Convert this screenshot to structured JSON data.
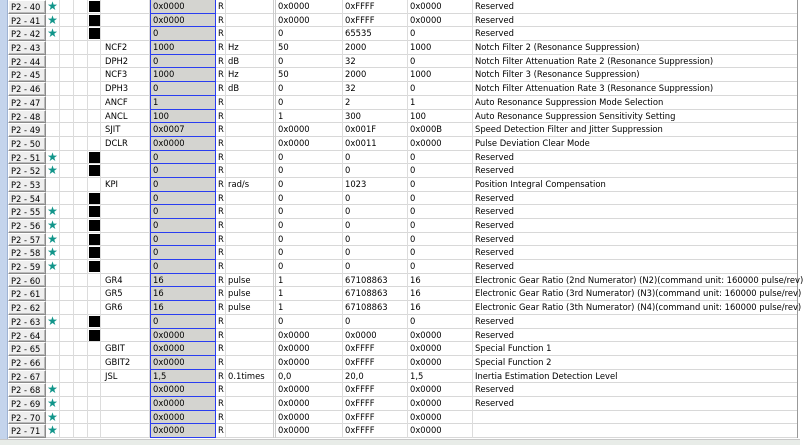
{
  "colors": {
    "star": "#11958a",
    "value_border": "#2a3df0",
    "value_bg": "#d4d4d0"
  },
  "rows": [
    {
      "id": "P2 - 40",
      "star": true,
      "block": true,
      "name": "",
      "value": "0x0000",
      "rw": "R",
      "unit": "",
      "min": "0x0000",
      "max": "0xFFFF",
      "default": "0x0000",
      "desc": "Reserved"
    },
    {
      "id": "P2 - 41",
      "star": true,
      "block": true,
      "name": "",
      "value": "0x0000",
      "rw": "R",
      "unit": "",
      "min": "0x0000",
      "max": "0xFFFF",
      "default": "0x0000",
      "desc": "Reserved"
    },
    {
      "id": "P2 - 42",
      "star": true,
      "block": true,
      "name": "",
      "value": "0",
      "rw": "R",
      "unit": "",
      "min": "0",
      "max": "65535",
      "default": "0",
      "desc": "Reserved"
    },
    {
      "id": "P2 - 43",
      "star": false,
      "block": false,
      "name": "NCF2",
      "value": "1000",
      "rw": "R",
      "unit": "Hz",
      "min": "50",
      "max": "2000",
      "default": "1000",
      "desc": "Notch Filter 2 (Resonance Suppression)"
    },
    {
      "id": "P2 - 44",
      "star": false,
      "block": false,
      "name": "DPH2",
      "value": "0",
      "rw": "R",
      "unit": "dB",
      "min": "0",
      "max": "32",
      "default": "0",
      "desc": "Notch Filter Attenuation Rate 2 (Resonance Suppression)"
    },
    {
      "id": "P2 - 45",
      "star": false,
      "block": false,
      "name": "NCF3",
      "value": "1000",
      "rw": "R",
      "unit": "Hz",
      "min": "50",
      "max": "2000",
      "default": "1000",
      "desc": "Notch Filter 3 (Resonance Suppression)"
    },
    {
      "id": "P2 - 46",
      "star": false,
      "block": false,
      "name": "DPH3",
      "value": "0",
      "rw": "R",
      "unit": "dB",
      "min": "0",
      "max": "32",
      "default": "0",
      "desc": "Notch Filter Attenuation Rate 3 (Resonance Suppression)"
    },
    {
      "id": "P2 - 47",
      "star": false,
      "block": false,
      "name": "ANCF",
      "value": "1",
      "rw": "R",
      "unit": "",
      "min": "0",
      "max": "2",
      "default": "1",
      "desc": "Auto Resonance Suppression Mode Selection"
    },
    {
      "id": "P2 - 48",
      "star": false,
      "block": false,
      "name": "ANCL",
      "value": "100",
      "rw": "R",
      "unit": "",
      "min": "1",
      "max": "300",
      "default": "100",
      "desc": "Auto Resonance Suppression Sensitivity Setting"
    },
    {
      "id": "P2 - 49",
      "star": false,
      "block": false,
      "name": "SJIT",
      "value": "0x0007",
      "rw": "R",
      "unit": "",
      "min": "0x0000",
      "max": "0x001F",
      "default": "0x000B",
      "desc": "Speed Detection Filter and Jitter Suppression"
    },
    {
      "id": "P2 - 50",
      "star": false,
      "block": false,
      "name": "DCLR",
      "value": "0x0000",
      "rw": "R",
      "unit": "",
      "min": "0x0000",
      "max": "0x0011",
      "default": "0x0000",
      "desc": "Pulse Deviation Clear Mode"
    },
    {
      "id": "P2 - 51",
      "star": true,
      "block": true,
      "name": "",
      "value": "0",
      "rw": "R",
      "unit": "",
      "min": "0",
      "max": "0",
      "default": "0",
      "desc": "Reserved"
    },
    {
      "id": "P2 - 52",
      "star": true,
      "block": true,
      "name": "",
      "value": "0",
      "rw": "R",
      "unit": "",
      "min": "0",
      "max": "0",
      "default": "0",
      "desc": "Reserved"
    },
    {
      "id": "P2 - 53",
      "star": false,
      "block": false,
      "name": "KPI",
      "value": "0",
      "rw": "R",
      "unit": "rad/s",
      "min": "0",
      "max": "1023",
      "default": "0",
      "desc": "Position Integral Compensation"
    },
    {
      "id": "P2 - 54",
      "star": false,
      "block": true,
      "name": "",
      "value": "0",
      "rw": "R",
      "unit": "",
      "min": "0",
      "max": "0",
      "default": "0",
      "desc": "Reserved"
    },
    {
      "id": "P2 - 55",
      "star": true,
      "block": true,
      "name": "",
      "value": "0",
      "rw": "R",
      "unit": "",
      "min": "0",
      "max": "0",
      "default": "0",
      "desc": "Reserved"
    },
    {
      "id": "P2 - 56",
      "star": true,
      "block": true,
      "name": "",
      "value": "0",
      "rw": "R",
      "unit": "",
      "min": "0",
      "max": "0",
      "default": "0",
      "desc": "Reserved"
    },
    {
      "id": "P2 - 57",
      "star": true,
      "block": true,
      "name": "",
      "value": "0",
      "rw": "R",
      "unit": "",
      "min": "0",
      "max": "0",
      "default": "0",
      "desc": "Reserved"
    },
    {
      "id": "P2 - 58",
      "star": true,
      "block": true,
      "name": "",
      "value": "0",
      "rw": "R",
      "unit": "",
      "min": "0",
      "max": "0",
      "default": "0",
      "desc": "Reserved"
    },
    {
      "id": "P2 - 59",
      "star": true,
      "block": true,
      "name": "",
      "value": "0",
      "rw": "R",
      "unit": "",
      "min": "0",
      "max": "0",
      "default": "0",
      "desc": "Reserved"
    },
    {
      "id": "P2 - 60",
      "star": false,
      "block": false,
      "name": "GR4",
      "value": "16",
      "rw": "R",
      "unit": "pulse",
      "min": "1",
      "max": "67108863",
      "default": "16",
      "desc": "Electronic Gear Ratio (2nd Numerator) (N2)(command unit: 160000 pulse/rev)"
    },
    {
      "id": "P2 - 61",
      "star": false,
      "block": false,
      "name": "GR5",
      "value": "16",
      "rw": "R",
      "unit": "pulse",
      "min": "1",
      "max": "67108863",
      "default": "16",
      "desc": "Electronic Gear Ratio (3rd Numerator) (N3)(command unit: 160000 pulse/rev)"
    },
    {
      "id": "P2 - 62",
      "star": false,
      "block": false,
      "name": "GR6",
      "value": "16",
      "rw": "R",
      "unit": "pulse",
      "min": "1",
      "max": "67108863",
      "default": "16",
      "desc": "Electronic Gear Ratio (3th Numerator) (N4)(command unit: 160000 pulse/rev)"
    },
    {
      "id": "P2 - 63",
      "star": true,
      "block": true,
      "name": "",
      "value": "0",
      "rw": "R",
      "unit": "",
      "min": "0",
      "max": "0",
      "default": "0",
      "desc": "Reserved"
    },
    {
      "id": "P2 - 64",
      "star": false,
      "block": true,
      "name": "",
      "value": "0x0000",
      "rw": "R",
      "unit": "",
      "min": "0x0000",
      "max": "0x0000",
      "default": "0x0000",
      "desc": "Reserved"
    },
    {
      "id": "P2 - 65",
      "star": false,
      "block": false,
      "name": "GBIT",
      "value": "0x0000",
      "rw": "R",
      "unit": "",
      "min": "0x0000",
      "max": "0xFFFF",
      "default": "0x0000",
      "desc": "Special Function 1"
    },
    {
      "id": "P2 - 66",
      "star": false,
      "block": false,
      "name": "GBIT2",
      "value": "0x0000",
      "rw": "R",
      "unit": "",
      "min": "0x0000",
      "max": "0xFFFF",
      "default": "0x0000",
      "desc": "Special Function 2"
    },
    {
      "id": "P2 - 67",
      "star": false,
      "block": false,
      "name": "JSL",
      "value": "1,5",
      "rw": "R",
      "unit": "0.1times",
      "min": "0,0",
      "max": "20,0",
      "default": "1,5",
      "desc": "Inertia Estimation Detection Level"
    },
    {
      "id": "P2 - 68",
      "star": true,
      "block": false,
      "name": "",
      "value": "0x0000",
      "rw": "R",
      "unit": "",
      "min": "0x0000",
      "max": "0xFFFF",
      "default": "0x0000",
      "desc": "Reserved"
    },
    {
      "id": "P2 - 69",
      "star": true,
      "block": false,
      "name": "",
      "value": "0x0000",
      "rw": "R",
      "unit": "",
      "min": "0x0000",
      "max": "0xFFFF",
      "default": "0x0000",
      "desc": "Reserved"
    },
    {
      "id": "P2 - 70",
      "star": true,
      "block": false,
      "name": "",
      "value": "0x0000",
      "rw": "R",
      "unit": "",
      "min": "0x0000",
      "max": "0xFFFF",
      "default": "0x0000",
      "desc": ""
    },
    {
      "id": "P2 - 71",
      "star": true,
      "block": false,
      "name": "",
      "value": "0x0000",
      "rw": "R",
      "unit": "",
      "min": "0x0000",
      "max": "0xFFFF",
      "default": "0x0000",
      "desc": ""
    }
  ]
}
